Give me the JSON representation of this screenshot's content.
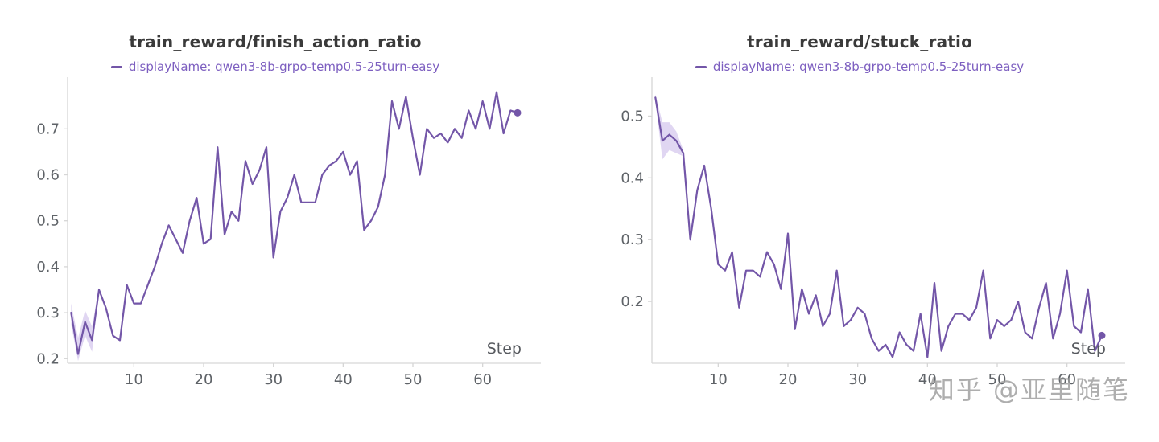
{
  "watermark": {
    "text": "知乎 @亚里随笔",
    "color": "#9a9a9a"
  },
  "colors": {
    "accent_purple": "#7356a8",
    "legend_text": "#7d5fc0",
    "band_fill": "#c6b4e8",
    "axis_line": "#d6d6d6",
    "tick_label": "#5f6368",
    "step_label": "#56595e",
    "title_text": "#3a3a3a"
  },
  "chart_data": [
    {
      "type": "line",
      "title": "train_reward/finish_action_ratio",
      "legend": "displayName: qwen3-8b-grpo-temp0.5-25turn-easy",
      "xlabel": "Step",
      "color": "#7356a8",
      "band_color": "#c6b4e8",
      "xlim": [
        0.5,
        66.5
      ],
      "ylim": [
        0.19,
        0.795
      ],
      "yticks": [
        0.2,
        0.3,
        0.4,
        0.5,
        0.6,
        0.7
      ],
      "xticks": [
        10,
        20,
        30,
        40,
        50,
        60
      ],
      "x_start": 1,
      "values": [
        0.3,
        0.21,
        0.28,
        0.24,
        0.35,
        0.31,
        0.25,
        0.24,
        0.36,
        0.32,
        0.32,
        0.36,
        0.4,
        0.45,
        0.49,
        0.46,
        0.43,
        0.5,
        0.55,
        0.45,
        0.46,
        0.66,
        0.47,
        0.52,
        0.5,
        0.63,
        0.58,
        0.61,
        0.66,
        0.42,
        0.52,
        0.55,
        0.6,
        0.54,
        0.54,
        0.54,
        0.6,
        0.62,
        0.63,
        0.65,
        0.6,
        0.63,
        0.48,
        0.5,
        0.53,
        0.6,
        0.76,
        0.7,
        0.77,
        0.68,
        0.6,
        0.7,
        0.68,
        0.69,
        0.67,
        0.7,
        0.68,
        0.74,
        0.7,
        0.76,
        0.7,
        0.78,
        0.69,
        0.74,
        0.735
      ],
      "band": {
        "x": [
          1,
          2,
          3,
          4,
          5
        ],
        "upper": [
          0.32,
          0.245,
          0.305,
          0.27,
          0.355
        ],
        "lower": [
          0.275,
          0.195,
          0.25,
          0.215,
          0.345
        ]
      }
    },
    {
      "type": "line",
      "title": "train_reward/stuck_ratio",
      "legend": "displayName: qwen3-8b-grpo-temp0.5-25turn-easy",
      "xlabel": "Step",
      "color": "#7356a8",
      "band_color": "#c6b4e8",
      "xlim": [
        0.5,
        66.5
      ],
      "ylim": [
        0.1,
        0.55
      ],
      "yticks": [
        0.2,
        0.3,
        0.4,
        0.5
      ],
      "xticks": [
        10,
        20,
        30,
        40,
        50,
        60
      ],
      "x_start": 1,
      "values": [
        0.53,
        0.46,
        0.47,
        0.46,
        0.44,
        0.3,
        0.38,
        0.42,
        0.35,
        0.26,
        0.25,
        0.28,
        0.19,
        0.25,
        0.25,
        0.24,
        0.28,
        0.26,
        0.22,
        0.31,
        0.155,
        0.22,
        0.18,
        0.21,
        0.16,
        0.18,
        0.25,
        0.16,
        0.17,
        0.19,
        0.18,
        0.14,
        0.12,
        0.13,
        0.11,
        0.15,
        0.13,
        0.12,
        0.18,
        0.11,
        0.23,
        0.12,
        0.16,
        0.18,
        0.18,
        0.17,
        0.19,
        0.25,
        0.14,
        0.17,
        0.16,
        0.17,
        0.2,
        0.15,
        0.14,
        0.19,
        0.23,
        0.14,
        0.18,
        0.25,
        0.16,
        0.15,
        0.22,
        0.12,
        0.145
      ],
      "band": {
        "x": [
          1,
          2,
          3,
          4,
          5
        ],
        "upper": [
          0.535,
          0.49,
          0.49,
          0.475,
          0.445
        ],
        "lower": [
          0.525,
          0.43,
          0.445,
          0.44,
          0.435
        ]
      }
    }
  ]
}
